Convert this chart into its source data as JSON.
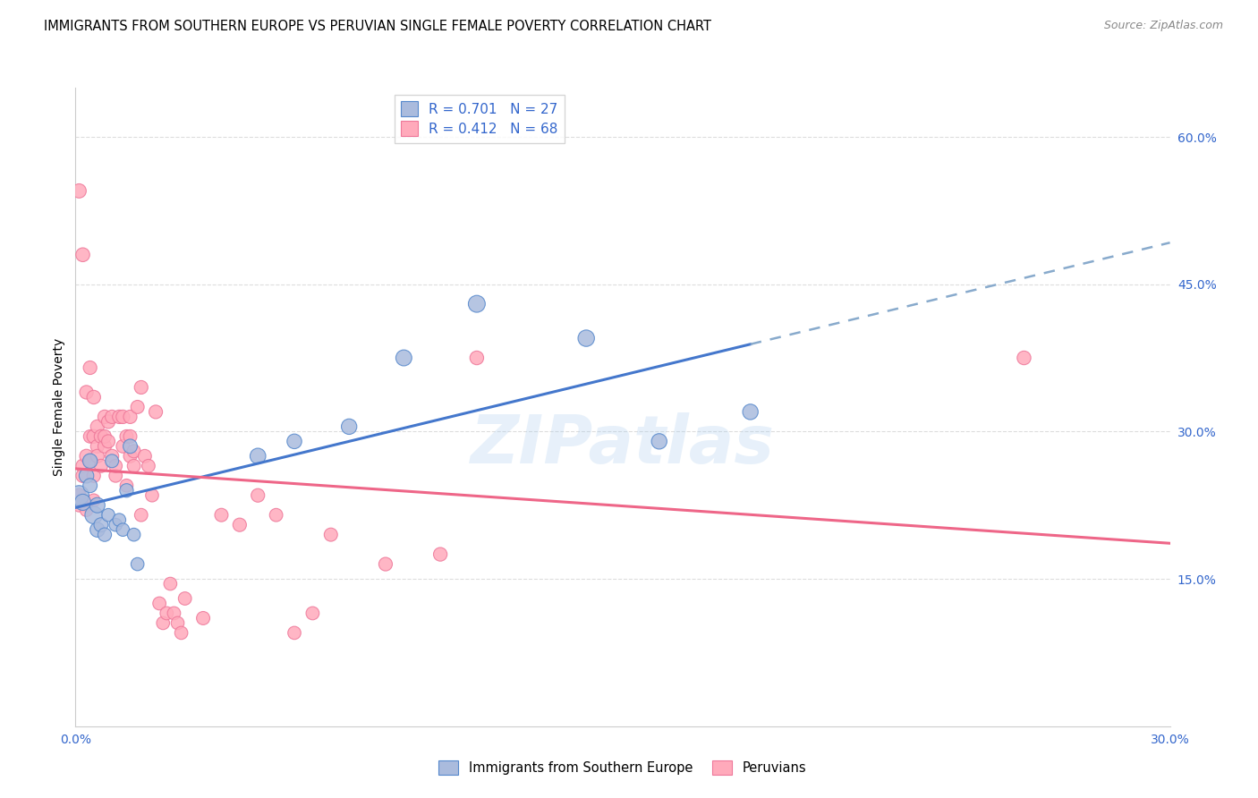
{
  "title": "IMMIGRANTS FROM SOUTHERN EUROPE VS PERUVIAN SINGLE FEMALE POVERTY CORRELATION CHART",
  "source": "Source: ZipAtlas.com",
  "ylabel": "Single Female Poverty",
  "xlim": [
    0.0,
    0.3
  ],
  "ylim": [
    0.0,
    0.65
  ],
  "right_yticks": [
    0.15,
    0.3,
    0.45,
    0.6
  ],
  "right_ytick_labels": [
    "15.0%",
    "30.0%",
    "45.0%",
    "60.0%"
  ],
  "xtick_vals": [
    0.0,
    0.3
  ],
  "xtick_labels": [
    "0.0%",
    "30.0%"
  ],
  "watermark": "ZIPatlas",
  "legend_r1": "R = 0.701",
  "legend_n1": "N = 27",
  "legend_r2": "R = 0.412",
  "legend_n2": "N = 68",
  "blue_fill": "#AABBDD",
  "pink_fill": "#FFAABB",
  "blue_edge": "#5588CC",
  "pink_edge": "#EE7799",
  "blue_line": "#4477CC",
  "pink_line": "#EE6688",
  "dashed_color": "#88AACC",
  "blue_scatter_x": [
    0.001,
    0.002,
    0.003,
    0.004,
    0.004,
    0.005,
    0.006,
    0.006,
    0.007,
    0.008,
    0.009,
    0.01,
    0.011,
    0.012,
    0.013,
    0.014,
    0.015,
    0.016,
    0.017,
    0.05,
    0.06,
    0.075,
    0.09,
    0.11,
    0.14,
    0.16,
    0.185
  ],
  "blue_scatter_y": [
    0.235,
    0.228,
    0.255,
    0.245,
    0.27,
    0.215,
    0.225,
    0.2,
    0.205,
    0.195,
    0.215,
    0.27,
    0.205,
    0.21,
    0.2,
    0.24,
    0.285,
    0.195,
    0.165,
    0.275,
    0.29,
    0.305,
    0.375,
    0.43,
    0.395,
    0.29,
    0.32
  ],
  "blue_scatter_s": [
    250,
    170,
    140,
    130,
    140,
    200,
    150,
    140,
    130,
    120,
    110,
    115,
    110,
    110,
    110,
    120,
    130,
    110,
    110,
    160,
    140,
    155,
    165,
    185,
    175,
    155,
    155
  ],
  "pink_scatter_x": [
    0.001,
    0.001,
    0.001,
    0.002,
    0.002,
    0.002,
    0.003,
    0.003,
    0.003,
    0.003,
    0.004,
    0.004,
    0.004,
    0.005,
    0.005,
    0.005,
    0.005,
    0.006,
    0.006,
    0.006,
    0.007,
    0.007,
    0.008,
    0.008,
    0.008,
    0.009,
    0.009,
    0.01,
    0.01,
    0.011,
    0.011,
    0.012,
    0.013,
    0.013,
    0.014,
    0.014,
    0.015,
    0.015,
    0.015,
    0.016,
    0.016,
    0.017,
    0.018,
    0.018,
    0.019,
    0.02,
    0.021,
    0.022,
    0.023,
    0.024,
    0.025,
    0.026,
    0.027,
    0.028,
    0.029,
    0.03,
    0.035,
    0.04,
    0.045,
    0.05,
    0.055,
    0.06,
    0.065,
    0.07,
    0.085,
    0.1,
    0.11,
    0.26
  ],
  "pink_scatter_y": [
    0.235,
    0.225,
    0.545,
    0.265,
    0.255,
    0.48,
    0.275,
    0.34,
    0.225,
    0.22,
    0.27,
    0.295,
    0.365,
    0.255,
    0.335,
    0.295,
    0.23,
    0.285,
    0.305,
    0.275,
    0.265,
    0.295,
    0.285,
    0.315,
    0.295,
    0.31,
    0.29,
    0.275,
    0.315,
    0.255,
    0.265,
    0.315,
    0.315,
    0.285,
    0.295,
    0.245,
    0.315,
    0.295,
    0.275,
    0.28,
    0.265,
    0.325,
    0.345,
    0.215,
    0.275,
    0.265,
    0.235,
    0.32,
    0.125,
    0.105,
    0.115,
    0.145,
    0.115,
    0.105,
    0.095,
    0.13,
    0.11,
    0.215,
    0.205,
    0.235,
    0.215,
    0.095,
    0.115,
    0.195,
    0.165,
    0.175,
    0.375,
    0.375
  ],
  "pink_scatter_s": [
    120,
    115,
    130,
    120,
    120,
    125,
    120,
    120,
    110,
    108,
    115,
    112,
    118,
    118,
    122,
    120,
    108,
    118,
    120,
    118,
    115,
    120,
    118,
    120,
    115,
    118,
    115,
    118,
    118,
    112,
    112,
    120,
    120,
    115,
    115,
    110,
    118,
    115,
    115,
    115,
    112,
    115,
    118,
    112,
    115,
    112,
    110,
    118,
    112,
    110,
    112,
    110,
    112,
    110,
    110,
    112,
    115,
    115,
    118,
    118,
    112,
    110,
    112,
    115,
    118,
    120,
    122,
    122
  ]
}
